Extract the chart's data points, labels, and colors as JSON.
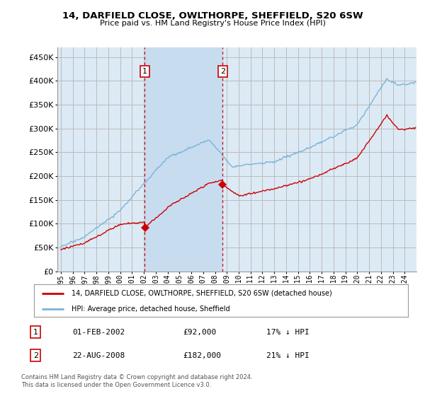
{
  "title": "14, DARFIELD CLOSE, OWLTHORPE, SHEFFIELD, S20 6SW",
  "subtitle": "Price paid vs. HM Land Registry's House Price Index (HPI)",
  "legend_line1": "14, DARFIELD CLOSE, OWLTHORPE, SHEFFIELD, S20 6SW (detached house)",
  "legend_line2": "HPI: Average price, detached house, Sheffield",
  "footnote": "Contains HM Land Registry data © Crown copyright and database right 2024.\nThis data is licensed under the Open Government Licence v3.0.",
  "transaction1": {
    "label": "1",
    "date": "01-FEB-2002",
    "price": "£92,000",
    "hpi": "17% ↓ HPI",
    "year": 2002.08
  },
  "transaction2": {
    "label": "2",
    "date": "22-AUG-2008",
    "price": "£182,000",
    "hpi": "21% ↓ HPI",
    "year": 2008.64
  },
  "hpi_color": "#7ab4d8",
  "price_color": "#cc0000",
  "background_color": "#dceaf5",
  "shade_color": "#c8dcf0",
  "grid_color": "#bbbbbb",
  "vline_color": "#cc0000",
  "ylim": [
    0,
    470000
  ],
  "yticks": [
    0,
    50000,
    100000,
    150000,
    200000,
    250000,
    300000,
    350000,
    400000,
    450000
  ],
  "xlabel_years": [
    1995,
    1996,
    1997,
    1998,
    1999,
    2000,
    2001,
    2002,
    2003,
    2004,
    2005,
    2006,
    2007,
    2008,
    2009,
    2010,
    2011,
    2012,
    2013,
    2014,
    2015,
    2016,
    2017,
    2018,
    2019,
    2020,
    2021,
    2022,
    2023,
    2024
  ]
}
